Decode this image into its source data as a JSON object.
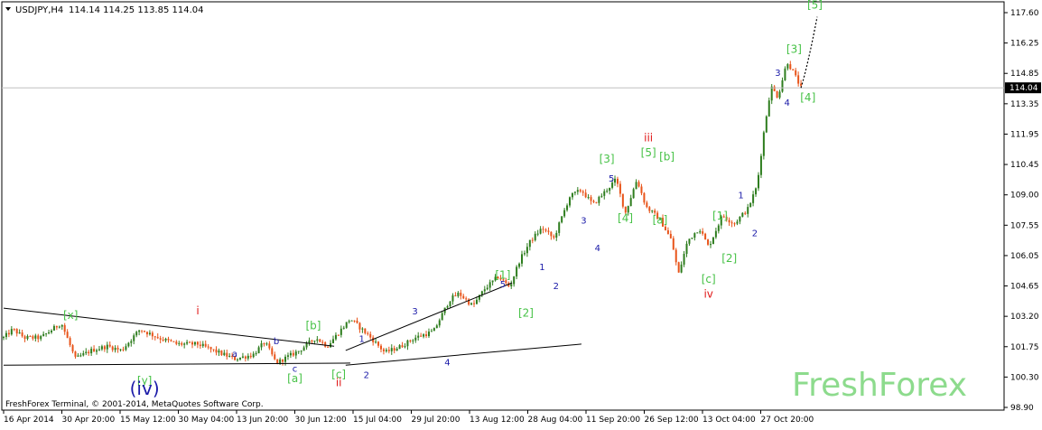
{
  "header": {
    "symbol": "USDJPY,H4",
    "ohlc": "114.14 114.25 113.85 114.04"
  },
  "watermark": "FreshForex",
  "copyright": "FreshForex Terminal, © 2001-2014, MetaQuotes Software Corp.",
  "colors": {
    "up_candle": "#2e7d1e",
    "down_candle": "#e8541a",
    "wave_blue": "#1a1aa8",
    "wave_green": "#47c247",
    "wave_red": "#e01818",
    "trendline": "#000000",
    "price_line": "#c0c0c0"
  },
  "chart_data": {
    "type": "candlestick",
    "symbol": "USDJPY",
    "timeframe": "H4",
    "current_price": "114.04",
    "y_ticks": [
      "117.60",
      "116.25",
      "114.85",
      "113.35",
      "111.95",
      "110.45",
      "109.00",
      "107.55",
      "106.05",
      "104.65",
      "103.20",
      "101.75",
      "100.30",
      "98.90"
    ],
    "ylim": [
      98.9,
      117.6
    ],
    "x_ticks": [
      "16 Apr 2014",
      "30 Apr 20:00",
      "15 May 12:00",
      "30 May 04:00",
      "13 Jun 20:00",
      "30 Jun 12:00",
      "15 Jul 04:00",
      "29 Jul 20:00",
      "13 Aug 12:00",
      "28 Aug 04:00",
      "11 Sep 20:00",
      "26 Sep 12:00",
      "13 Oct 04:00",
      "27 Oct 20:00"
    ],
    "price_path": [
      {
        "t": 0,
        "p": 102.2
      },
      {
        "t": 4,
        "p": 102.6
      },
      {
        "t": 9,
        "p": 102.2
      },
      {
        "t": 16,
        "p": 102.2
      },
      {
        "t": 25,
        "p": 102.9
      },
      {
        "t": 31,
        "p": 101.2
      },
      {
        "t": 38,
        "p": 101.6
      },
      {
        "t": 45,
        "p": 101.8
      },
      {
        "t": 51,
        "p": 101.6
      },
      {
        "t": 59,
        "p": 102.6
      },
      {
        "t": 67,
        "p": 102.2
      },
      {
        "t": 75,
        "p": 101.9
      },
      {
        "t": 84,
        "p": 101.9
      },
      {
        "t": 93,
        "p": 101.5
      },
      {
        "t": 100,
        "p": 101.2
      },
      {
        "t": 108,
        "p": 101.4
      },
      {
        "t": 113,
        "p": 102.0
      },
      {
        "t": 118,
        "p": 101.0
      },
      {
        "t": 128,
        "p": 101.6
      },
      {
        "t": 135,
        "p": 102.2
      },
      {
        "t": 140,
        "p": 101.8
      },
      {
        "t": 150,
        "p": 103.1
      },
      {
        "t": 158,
        "p": 102.3
      },
      {
        "t": 165,
        "p": 101.5
      },
      {
        "t": 172,
        "p": 101.8
      },
      {
        "t": 178,
        "p": 102.2
      },
      {
        "t": 186,
        "p": 102.5
      },
      {
        "t": 193,
        "p": 104.0
      },
      {
        "t": 197,
        "p": 104.3
      },
      {
        "t": 203,
        "p": 103.7
      },
      {
        "t": 208,
        "p": 104.5
      },
      {
        "t": 214,
        "p": 105.1
      },
      {
        "t": 219,
        "p": 104.6
      },
      {
        "t": 223,
        "p": 105.8
      },
      {
        "t": 228,
        "p": 106.8
      },
      {
        "t": 233,
        "p": 107.4
      },
      {
        "t": 238,
        "p": 106.9
      },
      {
        "t": 245,
        "p": 108.9
      },
      {
        "t": 250,
        "p": 109.2
      },
      {
        "t": 255,
        "p": 108.5
      },
      {
        "t": 260,
        "p": 109.1
      },
      {
        "t": 265,
        "p": 109.7
      },
      {
        "t": 269,
        "p": 108.1
      },
      {
        "t": 274,
        "p": 109.7
      },
      {
        "t": 278,
        "p": 108.4
      },
      {
        "t": 284,
        "p": 107.8
      },
      {
        "t": 289,
        "p": 106.8
      },
      {
        "t": 292,
        "p": 105.2
      },
      {
        "t": 296,
        "p": 106.8
      },
      {
        "t": 301,
        "p": 107.4
      },
      {
        "t": 305,
        "p": 106.5
      },
      {
        "t": 311,
        "p": 108.0
      },
      {
        "t": 316,
        "p": 107.6
      },
      {
        "t": 322,
        "p": 108.3
      },
      {
        "t": 326,
        "p": 109.4
      },
      {
        "t": 329,
        "p": 112.0
      },
      {
        "t": 332,
        "p": 114.1
      },
      {
        "t": 335,
        "p": 113.6
      },
      {
        "t": 339,
        "p": 115.3
      },
      {
        "t": 342,
        "p": 114.7
      },
      {
        "t": 345,
        "p": 114.04
      }
    ],
    "projection": [
      {
        "t": 345,
        "p": 114.04
      },
      {
        "t": 352,
        "p": 117.4
      }
    ],
    "trendlines": [
      {
        "t1": 0,
        "p1": 103.6,
        "t2": 143,
        "p2": 101.8
      },
      {
        "t1": 0,
        "p1": 100.9,
        "t2": 150,
        "p2": 101.0
      },
      {
        "t1": 148,
        "p1": 101.6,
        "t2": 220,
        "p2": 104.8
      },
      {
        "t1": 148,
        "p1": 100.9,
        "t2": 250,
        "p2": 101.9
      }
    ],
    "wave_labels": [
      {
        "text": "[x]",
        "t": 29,
        "p": 103.1,
        "color": "green",
        "size": "normal"
      },
      {
        "text": "i",
        "t": 84,
        "p": 103.3,
        "color": "red",
        "size": "normal"
      },
      {
        "text": "a",
        "t": 100,
        "p": 101.3,
        "color": "blue",
        "size": "small"
      },
      {
        "text": "b",
        "t": 118,
        "p": 101.9,
        "color": "blue",
        "size": "small"
      },
      {
        "text": "c",
        "t": 126,
        "p": 100.6,
        "color": "blue",
        "size": "small"
      },
      {
        "text": "[b]",
        "t": 134,
        "p": 102.6,
        "color": "green",
        "size": "normal"
      },
      {
        "text": "[y]",
        "t": 61,
        "p": 100.0,
        "color": "green",
        "size": "normal"
      },
      {
        "text": "(iv)",
        "t": 61,
        "p": 99.5,
        "color": "blue",
        "size": "big"
      },
      {
        "text": "[a]",
        "t": 126,
        "p": 100.1,
        "color": "green",
        "size": "normal"
      },
      {
        "text": "[c]",
        "t": 145,
        "p": 100.3,
        "color": "green",
        "size": "normal"
      },
      {
        "text": "ii",
        "t": 145,
        "p": 99.9,
        "color": "red",
        "size": "normal"
      },
      {
        "text": "1",
        "t": 155,
        "p": 102.0,
        "color": "blue",
        "size": "small"
      },
      {
        "text": "2",
        "t": 157,
        "p": 100.3,
        "color": "blue",
        "size": "small"
      },
      {
        "text": "3",
        "t": 178,
        "p": 103.3,
        "color": "blue",
        "size": "small"
      },
      {
        "text": "4",
        "t": 192,
        "p": 100.9,
        "color": "blue",
        "size": "small"
      },
      {
        "text": "5",
        "t": 216,
        "p": 104.6,
        "color": "blue",
        "size": "small"
      },
      {
        "text": "[1]",
        "t": 216,
        "p": 105.0,
        "color": "green",
        "size": "normal"
      },
      {
        "text": "[2]",
        "t": 226,
        "p": 103.2,
        "color": "green",
        "size": "normal"
      },
      {
        "text": "1",
        "t": 233,
        "p": 105.4,
        "color": "blue",
        "size": "small"
      },
      {
        "text": "2",
        "t": 239,
        "p": 104.5,
        "color": "blue",
        "size": "small"
      },
      {
        "text": "3",
        "t": 251,
        "p": 107.6,
        "color": "blue",
        "size": "small"
      },
      {
        "text": "4",
        "t": 257,
        "p": 106.3,
        "color": "blue",
        "size": "small"
      },
      {
        "text": "[3]",
        "t": 261,
        "p": 110.5,
        "color": "green",
        "size": "normal"
      },
      {
        "text": "5",
        "t": 263,
        "p": 109.6,
        "color": "blue",
        "size": "small"
      },
      {
        "text": "[4]",
        "t": 269,
        "p": 107.7,
        "color": "green",
        "size": "normal"
      },
      {
        "text": "[5]",
        "t": 279,
        "p": 110.8,
        "color": "green",
        "size": "normal"
      },
      {
        "text": "iii",
        "t": 279,
        "p": 111.5,
        "color": "red",
        "size": "normal"
      },
      {
        "text": "[b]",
        "t": 287,
        "p": 110.6,
        "color": "green",
        "size": "normal"
      },
      {
        "text": "[a]",
        "t": 284,
        "p": 107.6,
        "color": "green",
        "size": "normal"
      },
      {
        "text": "[c]",
        "t": 305,
        "p": 104.8,
        "color": "green",
        "size": "normal"
      },
      {
        "text": "iv",
        "t": 305,
        "p": 104.1,
        "color": "red",
        "size": "normal"
      },
      {
        "text": "[1]",
        "t": 310,
        "p": 107.8,
        "color": "green",
        "size": "normal"
      },
      {
        "text": "[2]",
        "t": 314,
        "p": 105.8,
        "color": "green",
        "size": "normal"
      },
      {
        "text": "1",
        "t": 319,
        "p": 108.8,
        "color": "blue",
        "size": "small"
      },
      {
        "text": "2",
        "t": 325,
        "p": 107.0,
        "color": "blue",
        "size": "small"
      },
      {
        "text": "3",
        "t": 335,
        "p": 114.6,
        "color": "blue",
        "size": "small"
      },
      {
        "text": "4",
        "t": 339,
        "p": 113.2,
        "color": "blue",
        "size": "small"
      },
      {
        "text": "[3]",
        "t": 342,
        "p": 115.7,
        "color": "green",
        "size": "normal"
      },
      {
        "text": "[4]",
        "t": 348,
        "p": 113.4,
        "color": "green",
        "size": "normal"
      },
      {
        "text": "[5]",
        "t": 351,
        "p": 117.8,
        "color": "green",
        "size": "normal"
      }
    ]
  }
}
